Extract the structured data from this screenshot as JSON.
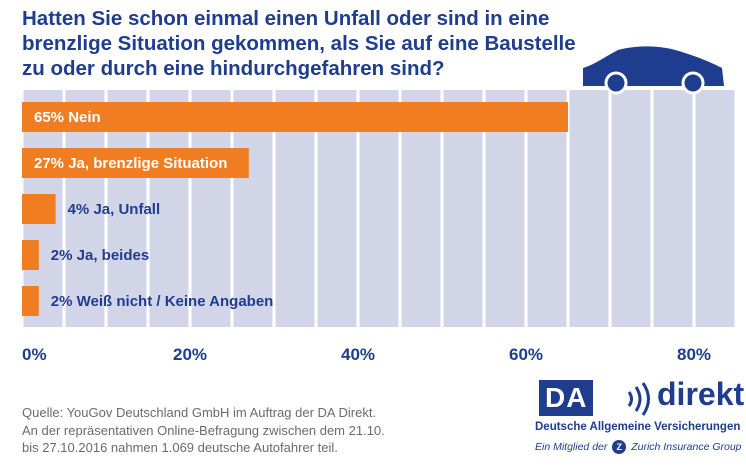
{
  "title": {
    "line1": "Hatten Sie schon einmal einen Unfall oder sind in eine",
    "line2": "brenzlige Situation gekommen, als Sie auf eine Baustelle",
    "line3": "zu oder durch eine hindurchgefahren sind?"
  },
  "chart_data": {
    "type": "bar",
    "orientation": "horizontal",
    "categories": [
      "Nein",
      "Ja, brenzlige Situation",
      "Ja, Unfall",
      "Ja, beides",
      "Weiß nicht / Keine Angaben"
    ],
    "values": [
      65,
      27,
      4,
      2,
      2
    ],
    "labels": [
      "65% Nein",
      "27% Ja, brenzlige Situation",
      "4% Ja, Unfall",
      "2% Ja, beides",
      "2% Weiß nicht / Keine Angaben"
    ],
    "xlim": [
      0,
      82
    ],
    "xticks": [
      0,
      20,
      40,
      60,
      80
    ],
    "xtick_labels": [
      "0%",
      "20%",
      "40%",
      "60%",
      "80%"
    ],
    "grid": true,
    "colors": {
      "bar": "#f07d22",
      "grid_column": "#d2d5e8",
      "text_dark": "#1f3d8f",
      "text_on_bar": "#ffffff"
    },
    "decoration": "car-icon"
  },
  "source": {
    "line1": "Quelle: YouGov Deutschland GmbH im Auftrag der DA Direkt.",
    "line2": "An der repräsentativen Online-Befragung zwischen dem 21.10.",
    "line3": "bis 27.10.2016 nahmen 1.069 deutsche Autofahrer teil."
  },
  "logo": {
    "da": "DA",
    "direkt": "direkt",
    "subtitle": "Deutsche Allgemeine Versicherungen",
    "member_prefix": "Ein Mitglied der",
    "member_suffix": "Zurich Insurance Group",
    "z": "Z"
  }
}
